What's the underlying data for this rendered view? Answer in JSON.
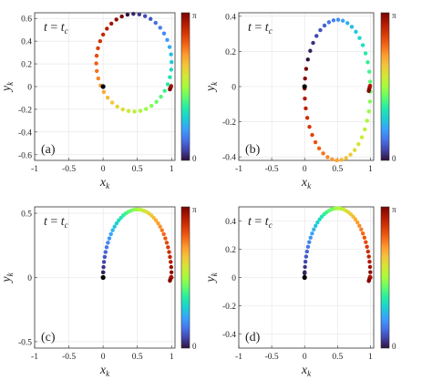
{
  "colormap": [
    "#30123b",
    "#4145ab",
    "#4675ed",
    "#39a2fc",
    "#1bcfd4",
    "#24eca6",
    "#61fc6c",
    "#a4fc3b",
    "#d1e834",
    "#f3c63a",
    "#fe9b2d",
    "#f36315",
    "#d93806",
    "#b11901",
    "#7a0402"
  ],
  "chart_data": [
    {
      "type": "scatter",
      "panel_label": "(a)",
      "annotation": "t = t_c",
      "annotation_parts": {
        "var": "t",
        "eq": " = ",
        "rhs": "t",
        "sub": "c"
      },
      "xlabel": {
        "main": "x",
        "sub": "k"
      },
      "ylabel": {
        "main": "y",
        "sub": "k"
      },
      "xlim": [
        -1,
        1.05
      ],
      "ylim": [
        -0.65,
        0.65
      ],
      "xticks": [
        -1,
        -0.5,
        0,
        0.5,
        1
      ],
      "xtick_labels": [
        "-1",
        "-0.5",
        "0",
        "0.5",
        "1"
      ],
      "yticks": [
        -0.6,
        -0.4,
        -0.2,
        0,
        0.2,
        0.4,
        0.6
      ],
      "ytick_labels": [
        "-0.6",
        "-0.4",
        "-0.2",
        "0",
        "0.2",
        "0.4",
        "0.6"
      ],
      "colorbar": {
        "min": 0,
        "max": 3.1416,
        "min_label": "0",
        "max_label": "π"
      },
      "origin_point": {
        "x": 0,
        "y": 0
      },
      "curve": {
        "center": [
          0.45,
          0.21
        ],
        "rx": 0.55,
        "ry": 0.43,
        "phase_start": 1.4,
        "n": 40
      }
    },
    {
      "type": "scatter",
      "panel_label": "(b)",
      "annotation": "t = t_c",
      "annotation_parts": {
        "var": "t",
        "eq": " = ",
        "rhs": "t",
        "sub": "c"
      },
      "xlabel": {
        "main": "x",
        "sub": "k"
      },
      "ylabel": {
        "main": "y",
        "sub": "k"
      },
      "xlim": [
        -1,
        1.05
      ],
      "ylim": [
        -0.42,
        0.42
      ],
      "xticks": [
        -1,
        -0.5,
        0,
        0.5,
        1
      ],
      "xtick_labels": [
        "-1",
        "-0.5",
        "0",
        "0.5",
        "1"
      ],
      "yticks": [
        -0.4,
        -0.2,
        0,
        0.2,
        0.4
      ],
      "ytick_labels": [
        "-0.4",
        "-0.2",
        "0",
        "0.2",
        "0.4"
      ],
      "colorbar": {
        "min": 0,
        "max": 3.1416,
        "min_label": "0",
        "max_label": "π"
      },
      "origin_point": {
        "x": 0,
        "y": 0
      },
      "curve": {
        "center": [
          0.5,
          -0.02
        ],
        "rx": 0.5,
        "ry": 0.4,
        "phase_start": 0.45,
        "n": 44
      }
    },
    {
      "type": "scatter",
      "panel_label": "(c)",
      "annotation": "t = t_c",
      "annotation_parts": {
        "var": "t",
        "eq": " = ",
        "rhs": "t",
        "sub": "c"
      },
      "xlabel": {
        "main": "x",
        "sub": "k"
      },
      "ylabel": {
        "main": "y",
        "sub": "k"
      },
      "xlim": [
        -1,
        1.05
      ],
      "ylim": [
        -0.55,
        0.55
      ],
      "xticks": [
        -1,
        -0.5,
        0,
        0.5,
        1
      ],
      "xtick_labels": [
        "-1",
        "-0.5",
        "0",
        "0.5",
        "1"
      ],
      "yticks": [
        -0.5,
        0,
        0.5
      ],
      "ytick_labels": [
        "-0.5",
        "0",
        "0.5"
      ],
      "colorbar": {
        "min": 0,
        "max": 3.1416,
        "min_label": "0",
        "max_label": "π"
      },
      "origin_point": {
        "x": 0,
        "y": 0
      },
      "curve": {
        "center": [
          0.5,
          0.0
        ],
        "rx": 0.5,
        "ry": 0.53,
        "phase_start": 0,
        "phase_end": 3.1416,
        "n": 42,
        "extra_first": {
          "x": 0.0,
          "y": 0.04
        }
      }
    },
    {
      "type": "scatter",
      "panel_label": "(d)",
      "annotation": "t = t_c",
      "annotation_parts": {
        "var": "t",
        "eq": " = ",
        "rhs": "t",
        "sub": "c"
      },
      "xlabel": {
        "main": "x",
        "sub": "k"
      },
      "ylabel": {
        "main": "y",
        "sub": "k"
      },
      "xlim": [
        -1,
        1.05
      ],
      "ylim": [
        -0.5,
        0.5
      ],
      "xticks": [
        -1,
        -0.5,
        0,
        0.5,
        1
      ],
      "xtick_labels": [
        "-1",
        "-0.5",
        "0",
        "0.5",
        "1"
      ],
      "yticks": [
        -0.4,
        -0.2,
        0,
        0.2,
        0.4
      ],
      "ytick_labels": [
        "-0.4",
        "-0.2",
        "0",
        "0.2",
        "0.4"
      ],
      "colorbar": {
        "min": 0,
        "max": 3.1416,
        "min_label": "0",
        "max_label": "π"
      },
      "origin_point": {
        "x": 0,
        "y": 0
      },
      "curve": {
        "center": [
          0.5,
          0.0
        ],
        "rx": 0.5,
        "ry": 0.49,
        "phase_start": 0,
        "phase_end": 3.1416,
        "n": 42,
        "extra_first": {
          "x": 0.0,
          "y": 0.03
        }
      }
    }
  ]
}
